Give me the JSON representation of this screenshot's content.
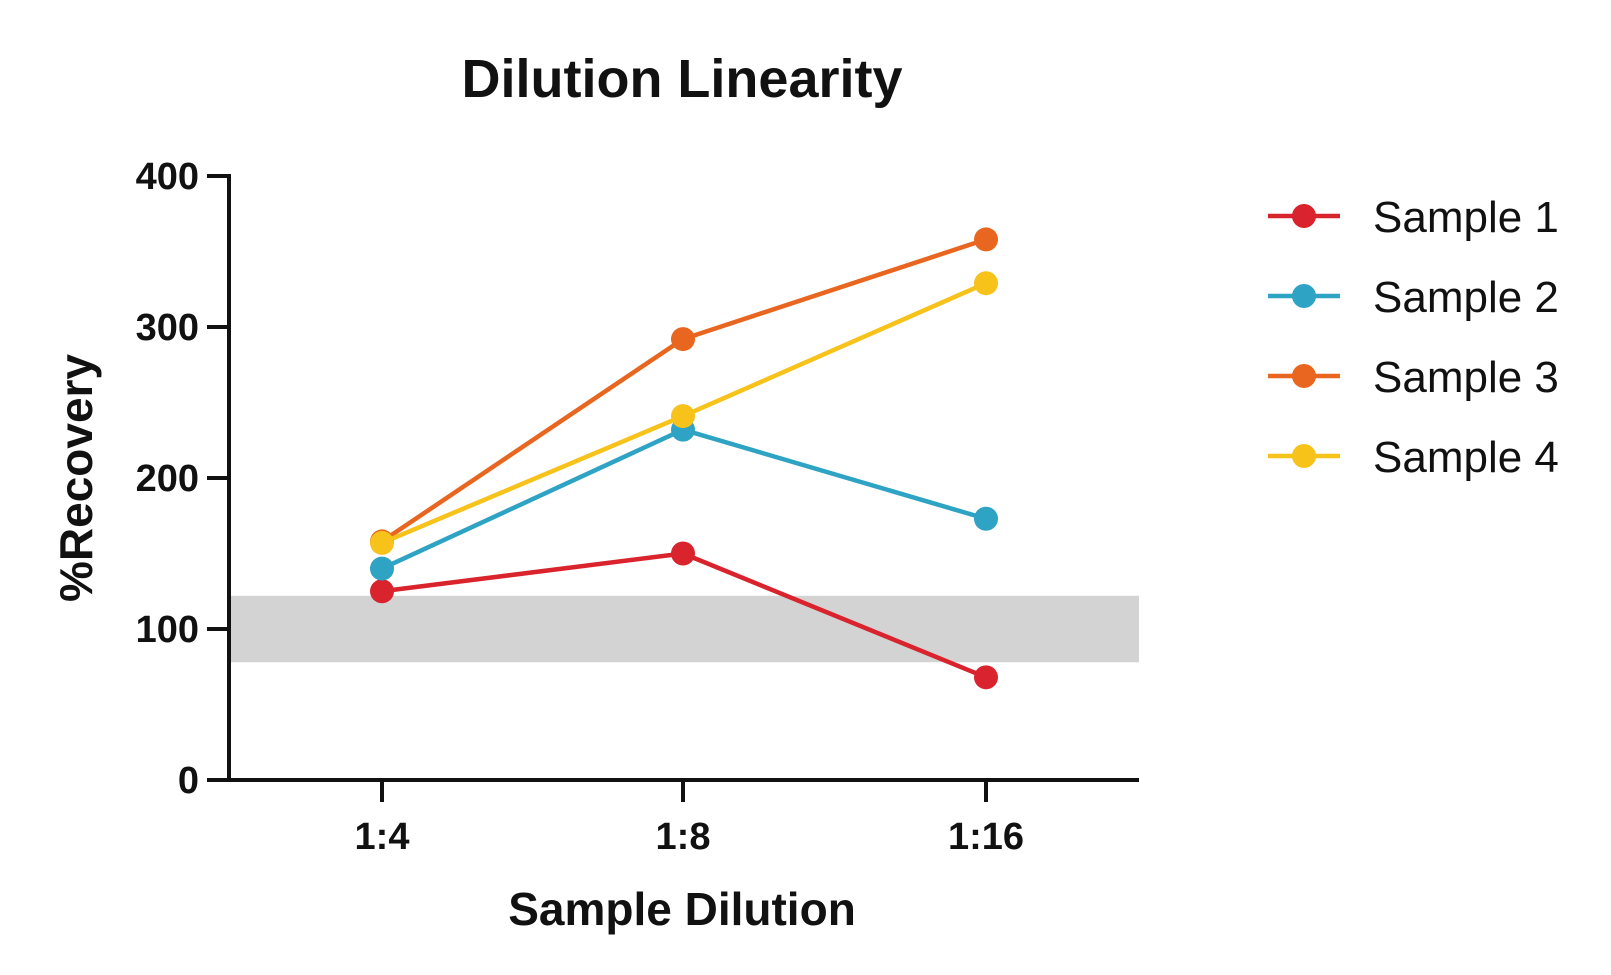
{
  "chart_data": {
    "type": "line",
    "title": "Dilution Linearity",
    "xlabel": "Sample Dilution",
    "ylabel": "%Recovery",
    "categories": [
      "1:4",
      "1:8",
      "1:16"
    ],
    "ylim": [
      0,
      400
    ],
    "yticks": [
      "0",
      "100",
      "200",
      "300",
      "400"
    ],
    "reference_band": {
      "from": 78,
      "to": 122,
      "color": "#d3d3d3"
    },
    "grid": false,
    "legend_position": "right",
    "series": [
      {
        "name": "Sample 1",
        "color": "#d9232d",
        "values": [
          125,
          150,
          68
        ]
      },
      {
        "name": "Sample 2",
        "color": "#2ea3c4",
        "values": [
          140,
          232,
          173
        ]
      },
      {
        "name": "Sample 3",
        "color": "#e8661f",
        "values": [
          158,
          292,
          358
        ]
      },
      {
        "name": "Sample 4",
        "color": "#f7c219",
        "values": [
          157,
          241,
          329
        ]
      }
    ]
  }
}
